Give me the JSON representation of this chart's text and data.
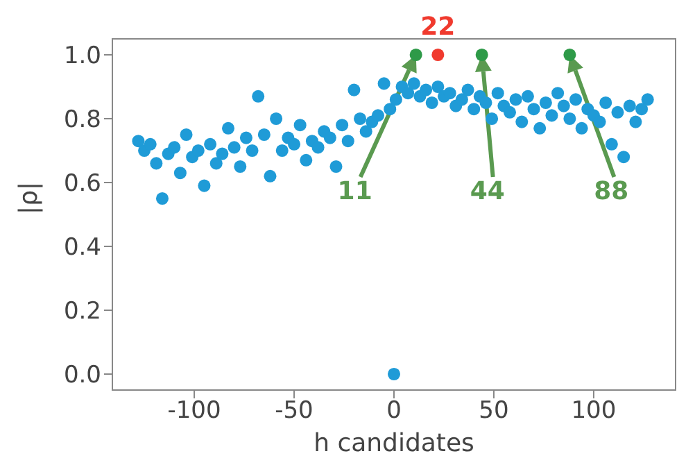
{
  "chart_data": {
    "type": "scatter",
    "xlabel": "h candidates",
    "ylabel": "|ρ|",
    "xlim": [
      -141,
      141
    ],
    "ylim": [
      -0.05,
      1.05
    ],
    "xticks": [
      -100,
      -50,
      0,
      50,
      100
    ],
    "yticks": [
      {
        "value": 0,
        "label": "0.0"
      },
      {
        "value": 0.2,
        "label": "0.2"
      },
      {
        "value": 0.4,
        "label": "0.4"
      },
      {
        "value": 0.6,
        "label": "0.6"
      },
      {
        "value": 0.8,
        "label": "0.8"
      },
      {
        "value": 1,
        "label": "1.0"
      }
    ],
    "grid": false,
    "marker": "circle",
    "series": [
      {
        "color": "#1f9bd7",
        "x": [
          -128,
          -125,
          -122,
          -119,
          -116,
          -113,
          -110,
          -107,
          -104,
          -101,
          -98,
          -95,
          -92,
          -89,
          -86,
          -83,
          -80,
          -77,
          -74,
          -71,
          -68,
          -65,
          -62,
          -59,
          -56,
          -53,
          -50,
          -47,
          -44,
          -41,
          -38,
          -35,
          -32,
          -29,
          -26,
          -23,
          -20,
          -17,
          -14,
          -11,
          -8,
          -5,
          -2,
          0,
          1,
          4,
          7,
          10,
          13,
          16,
          19,
          22,
          25,
          28,
          31,
          34,
          37,
          40,
          43,
          46,
          49,
          52,
          55,
          58,
          61,
          64,
          67,
          70,
          73,
          76,
          79,
          82,
          85,
          88,
          91,
          94,
          97,
          100,
          103,
          106,
          109,
          112,
          115,
          118,
          121,
          124,
          127
        ],
        "values": [
          0.73,
          0.7,
          0.72,
          0.66,
          0.55,
          0.69,
          0.71,
          0.63,
          0.75,
          0.68,
          0.7,
          0.59,
          0.72,
          0.66,
          0.69,
          0.77,
          0.71,
          0.65,
          0.74,
          0.7,
          0.87,
          0.75,
          0.62,
          0.8,
          0.7,
          0.74,
          0.72,
          0.78,
          0.67,
          0.73,
          0.71,
          0.76,
          0.74,
          0.65,
          0.78,
          0.73,
          0.89,
          0.8,
          0.76,
          0.79,
          0.81,
          0.91,
          0.83,
          0,
          0.86,
          0.9,
          0.88,
          0.91,
          0.87,
          0.89,
          0.85,
          0.9,
          0.87,
          0.88,
          0.84,
          0.86,
          0.89,
          0.83,
          0.87,
          0.85,
          0.8,
          0.88,
          0.84,
          0.82,
          0.86,
          0.79,
          0.87,
          0.83,
          0.77,
          0.85,
          0.81,
          0.88,
          0.84,
          0.8,
          0.86,
          0.77,
          0.83,
          0.81,
          0.79,
          0.85,
          0.72,
          0.82,
          0.68,
          0.84,
          0.79,
          0.83,
          0.86
        ]
      },
      {
        "color": "#2e9a48",
        "x": [
          11,
          44,
          88
        ],
        "values": [
          1.0,
          1.0,
          1.0
        ]
      },
      {
        "color": "#f03a2e",
        "x": [
          22
        ],
        "values": [
          1.0
        ]
      }
    ],
    "annotations": [
      {
        "text": "22",
        "x": 22,
        "y": 1.0
      },
      "11",
      "44",
      "88"
    ]
  }
}
